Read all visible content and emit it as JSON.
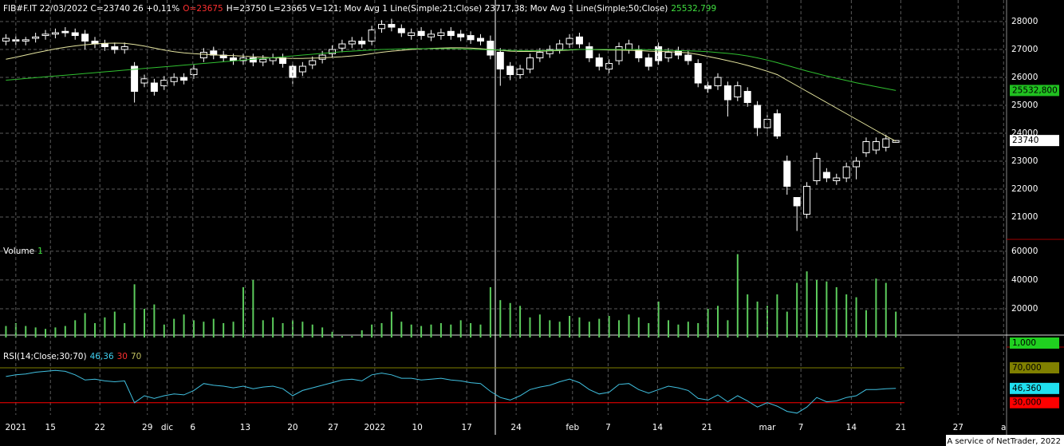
{
  "chart_data": [
    {
      "type": "candlestick",
      "title_parts": [
        {
          "text": "FIB#F.IT 22/03/2022 C=23740 26 +0,11%",
          "color": "#ffffff"
        },
        {
          "text": "O=23675",
          "color": "#ff3030"
        },
        {
          "text": "H=23750 L=23665 V=121; Mov Avg 1 Line(Simple;21;Close) 23717,38; Mov Avg 1 Line(Simple;50;Close)",
          "color": "#ffffff"
        },
        {
          "text": "25532,799",
          "color": "#40e040"
        }
      ],
      "xlim": [
        -0.6,
        101.2
      ],
      "ylim": [
        20200,
        28630
      ],
      "yticks": [
        28000,
        27000,
        26000,
        25000,
        24000,
        23000,
        22000,
        21000
      ],
      "grid": true,
      "series": [
        {
          "up_color": "#000000",
          "down_color": "#ffffff",
          "open": [
            27300,
            27350,
            27300,
            27400,
            27500,
            27550,
            27650,
            27600,
            27550,
            27300,
            27200,
            27100,
            27000,
            26400,
            25800,
            25800,
            25700,
            25850,
            26000,
            26100,
            26700,
            26950,
            26800,
            26700,
            26600,
            26700,
            26550,
            26600,
            26700,
            26400,
            26200,
            26450,
            26650,
            26850,
            27050,
            27200,
            27300,
            27300,
            27750,
            27900,
            27750,
            27500,
            27650,
            27450,
            27500,
            27650,
            27550,
            27500,
            27400,
            27300,
            26900,
            26400,
            26100,
            26300,
            26700,
            26850,
            27000,
            27200,
            27450,
            27100,
            26700,
            26300,
            26600,
            27000,
            27000,
            26700,
            27100,
            26700,
            26950,
            26800,
            26500,
            25700,
            25700,
            25700,
            25300,
            25500,
            25000,
            24200,
            24700,
            23000,
            21700,
            21100,
            22300,
            22600,
            22300,
            22400,
            22800,
            23300,
            23400,
            23500,
            23675
          ],
          "high": [
            27550,
            27500,
            27450,
            27600,
            27700,
            27750,
            27800,
            27750,
            27700,
            27450,
            27350,
            27250,
            27250,
            26550,
            26100,
            25950,
            26050,
            26150,
            26150,
            26450,
            27050,
            27100,
            26950,
            26850,
            26850,
            26850,
            26800,
            26850,
            26850,
            26550,
            26550,
            26750,
            26950,
            27150,
            27350,
            27450,
            27450,
            27850,
            28050,
            28100,
            27900,
            27750,
            27800,
            27700,
            27750,
            27800,
            27700,
            27650,
            27550,
            27500,
            27050,
            26550,
            26450,
            26850,
            27050,
            27150,
            27350,
            27550,
            27600,
            27250,
            26850,
            26650,
            27250,
            27350,
            27150,
            26850,
            27250,
            27050,
            27100,
            26950,
            26650,
            25850,
            26150,
            25850,
            25850,
            25650,
            25150,
            24650,
            24850,
            23200,
            21700,
            22250,
            23300,
            22750,
            22550,
            22950,
            23150,
            23850,
            23850,
            23950,
            23750
          ],
          "low": [
            27150,
            27150,
            27150,
            27250,
            27350,
            27400,
            27450,
            27350,
            27000,
            27050,
            26950,
            26850,
            26850,
            25100,
            25650,
            25350,
            25550,
            25700,
            25750,
            25950,
            26550,
            26650,
            26550,
            26450,
            26450,
            26400,
            26400,
            26450,
            26350,
            25700,
            26050,
            26300,
            26500,
            26700,
            26900,
            27050,
            27050,
            27150,
            27600,
            27650,
            27450,
            27350,
            27350,
            27300,
            27350,
            27350,
            27300,
            27200,
            27150,
            26650,
            25700,
            25900,
            25950,
            26150,
            26550,
            26700,
            26850,
            27050,
            27050,
            26550,
            26250,
            26150,
            26450,
            26850,
            26550,
            26250,
            26450,
            26550,
            26650,
            26450,
            25650,
            25450,
            25550,
            24600,
            25150,
            24950,
            23900,
            24050,
            23800,
            21800,
            20500,
            20950,
            22150,
            22250,
            22150,
            22250,
            22350,
            23150,
            23250,
            23350,
            23665
          ],
          "close": [
            27400,
            27300,
            27350,
            27450,
            27550,
            27600,
            27600,
            27500,
            27300,
            27200,
            27100,
            27000,
            27100,
            25500,
            25950,
            25500,
            25900,
            26000,
            25900,
            26300,
            26900,
            26800,
            26700,
            26600,
            26700,
            26550,
            26650,
            26700,
            26500,
            26000,
            26400,
            26600,
            26800,
            27000,
            27200,
            27300,
            27200,
            27700,
            27900,
            27800,
            27600,
            27600,
            27500,
            27550,
            27600,
            27500,
            27450,
            27350,
            27300,
            26800,
            26300,
            26100,
            26300,
            26700,
            26900,
            27000,
            27200,
            27400,
            27200,
            26700,
            26400,
            26500,
            27100,
            27200,
            26700,
            26400,
            26600,
            26900,
            26800,
            26600,
            25800,
            25600,
            26000,
            25200,
            25700,
            25100,
            24200,
            24500,
            23900,
            22100,
            21400,
            22100,
            23100,
            22400,
            22400,
            22800,
            23000,
            23700,
            23700,
            23800,
            23740
          ]
        },
        {
          "color": "#e6e6a0",
          "values": [
            26650,
            26720,
            26800,
            26880,
            26950,
            27020,
            27080,
            27130,
            27170,
            27200,
            27220,
            27230,
            27220,
            27180,
            27120,
            27050,
            26980,
            26920,
            26880,
            26850,
            26830,
            26810,
            26790,
            26780,
            26760,
            26740,
            26720,
            26700,
            26690,
            26680,
            26680,
            26690,
            26700,
            26720,
            26740,
            26770,
            26800,
            26850,
            26900,
            26940,
            26970,
            27000,
            27020,
            27040,
            27050,
            27060,
            27060,
            27050,
            27030,
            27000,
            26970,
            26940,
            26930,
            26930,
            26940,
            26950,
            26960,
            26980,
            27000,
            27000,
            26990,
            26980,
            26980,
            26970,
            26960,
            26940,
            26930,
            26920,
            26900,
            26880,
            26820,
            26750,
            26680,
            26600,
            26520,
            26430,
            26330,
            26220,
            26100,
            25900,
            25700,
            25500,
            25300,
            25100,
            24900,
            24700,
            24500,
            24300,
            24100,
            23900,
            23717.38
          ]
        },
        {
          "color": "#30c030",
          "badge_color": "#20c020",
          "last_label": "25532,800",
          "values": [
            25900,
            25930,
            25960,
            25990,
            26020,
            26050,
            26080,
            26110,
            26140,
            26170,
            26200,
            26230,
            26260,
            26290,
            26320,
            26350,
            26380,
            26410,
            26440,
            26470,
            26500,
            26530,
            26560,
            26590,
            26620,
            26650,
            26680,
            26710,
            26740,
            26770,
            26800,
            26830,
            26860,
            26890,
            26920,
            26940,
            26960,
            26980,
            27000,
            27010,
            27020,
            27030,
            27030,
            27030,
            27030,
            27030,
            27020,
            27010,
            27000,
            26990,
            26980,
            26970,
            26960,
            26960,
            26960,
            26970,
            26980,
            26990,
            27000,
            27000,
            27000,
            27000,
            27000,
            27000,
            27000,
            26990,
            26980,
            26970,
            26960,
            26950,
            26940,
            26920,
            26890,
            26860,
            26820,
            26770,
            26700,
            26620,
            26530,
            26430,
            26330,
            26230,
            26140,
            26050,
            25970,
            25890,
            25810,
            25740,
            25670,
            25600,
            25532.8
          ]
        }
      ]
    },
    {
      "type": "bar",
      "title_parts": [
        {
          "text": "Volume",
          "color": "#ffffff"
        },
        {
          "text": "1",
          "color": "#40e040"
        }
      ],
      "marker_label": "1,000",
      "marker_color": "#20d020",
      "xlim": [
        -0.6,
        101.2
      ],
      "ylim": [
        -5000,
        65500
      ],
      "yticks": [
        60000,
        40000,
        20000
      ],
      "color": "#5ccc5c",
      "values": [
        8000,
        10000,
        8000,
        7000,
        6000,
        7000,
        8000,
        12000,
        17000,
        10000,
        14000,
        18000,
        10000,
        37000,
        20000,
        23000,
        9000,
        13000,
        16000,
        12000,
        11000,
        13000,
        10000,
        11000,
        35000,
        40000,
        12000,
        14000,
        10000,
        12000,
        11000,
        9000,
        7000,
        4000,
        1000,
        1000,
        5000,
        9000,
        10000,
        18000,
        11000,
        9000,
        8000,
        9000,
        10000,
        9000,
        12000,
        10000,
        9000,
        35000,
        26000,
        24000,
        22000,
        14000,
        16000,
        12000,
        11000,
        15000,
        14000,
        11000,
        13000,
        15000,
        12000,
        16000,
        14000,
        10000,
        25000,
        12000,
        9000,
        11000,
        10000,
        20000,
        22000,
        12000,
        58000,
        30000,
        25000,
        22000,
        30000,
        18000,
        38000,
        46000,
        40000,
        39000,
        35000,
        30000,
        28000,
        19000,
        41000,
        38000,
        18000
      ]
    },
    {
      "type": "line",
      "title_parts": [
        {
          "text": "RSI(14;Close;30;70)",
          "color": "#ffffff"
        },
        {
          "text": "46,36",
          "color": "#40d0f0"
        },
        {
          "text": "30",
          "color": "#ff3030"
        },
        {
          "text": "70",
          "color": "#c0c060"
        }
      ],
      "xlim": [
        -0.6,
        101.2
      ],
      "ylim": [
        16,
        92
      ],
      "levels": [
        {
          "value": 70,
          "label": "70,000",
          "color": "#808000"
        },
        {
          "value": 30,
          "label": "30,000",
          "color": "#ff0000"
        }
      ],
      "xticks": [
        {
          "value": 1.0,
          "label": "2021"
        },
        {
          "value": 4.5,
          "label": "15"
        },
        {
          "value": 9.5,
          "label": "22"
        },
        {
          "value": 14.3,
          "label": "29"
        },
        {
          "value": 16.3,
          "label": "dic"
        },
        {
          "value": 18.9,
          "label": "6"
        },
        {
          "value": 24.2,
          "label": "13"
        },
        {
          "value": 29.0,
          "label": "20"
        },
        {
          "value": 33.1,
          "label": "27"
        },
        {
          "value": 37.3,
          "label": "2022"
        },
        {
          "value": 41.6,
          "label": "10"
        },
        {
          "value": 46.6,
          "label": "17"
        },
        {
          "value": 51.6,
          "label": "24"
        },
        {
          "value": 57.3,
          "label": "feb"
        },
        {
          "value": 60.9,
          "label": "7"
        },
        {
          "value": 65.9,
          "label": "14"
        },
        {
          "value": 70.9,
          "label": "21"
        },
        {
          "value": 77.0,
          "label": "mar"
        },
        {
          "value": 80.4,
          "label": "7"
        },
        {
          "value": 85.5,
          "label": "14"
        },
        {
          "value": 90.5,
          "label": "21"
        },
        {
          "value": 96.3,
          "label": "27"
        },
        {
          "value": 100.9,
          "label": "a"
        }
      ],
      "series": [
        {
          "color": "#40c0e0",
          "badge_color": "#20e0f0",
          "last_label": "46,360",
          "values": [
            60,
            62,
            63,
            65,
            66,
            67,
            66,
            62,
            56,
            57,
            55,
            54,
            55,
            30,
            38,
            35,
            38,
            40,
            39,
            44,
            52,
            50,
            49,
            47,
            49,
            46,
            48,
            49,
            46,
            38,
            44,
            47,
            50,
            53,
            56,
            57,
            55,
            62,
            64,
            62,
            58,
            58,
            56,
            57,
            58,
            56,
            55,
            53,
            52,
            43,
            36,
            33,
            38,
            45,
            48,
            50,
            54,
            57,
            53,
            45,
            40,
            42,
            51,
            52,
            45,
            41,
            45,
            49,
            47,
            44,
            35,
            33,
            39,
            31,
            38,
            32,
            25,
            30,
            26,
            20,
            18,
            25,
            36,
            31,
            32,
            36,
            38,
            45,
            45,
            46,
            46.36
          ]
        }
      ]
    }
  ],
  "footer": "A service of NetTrader, 2022"
}
